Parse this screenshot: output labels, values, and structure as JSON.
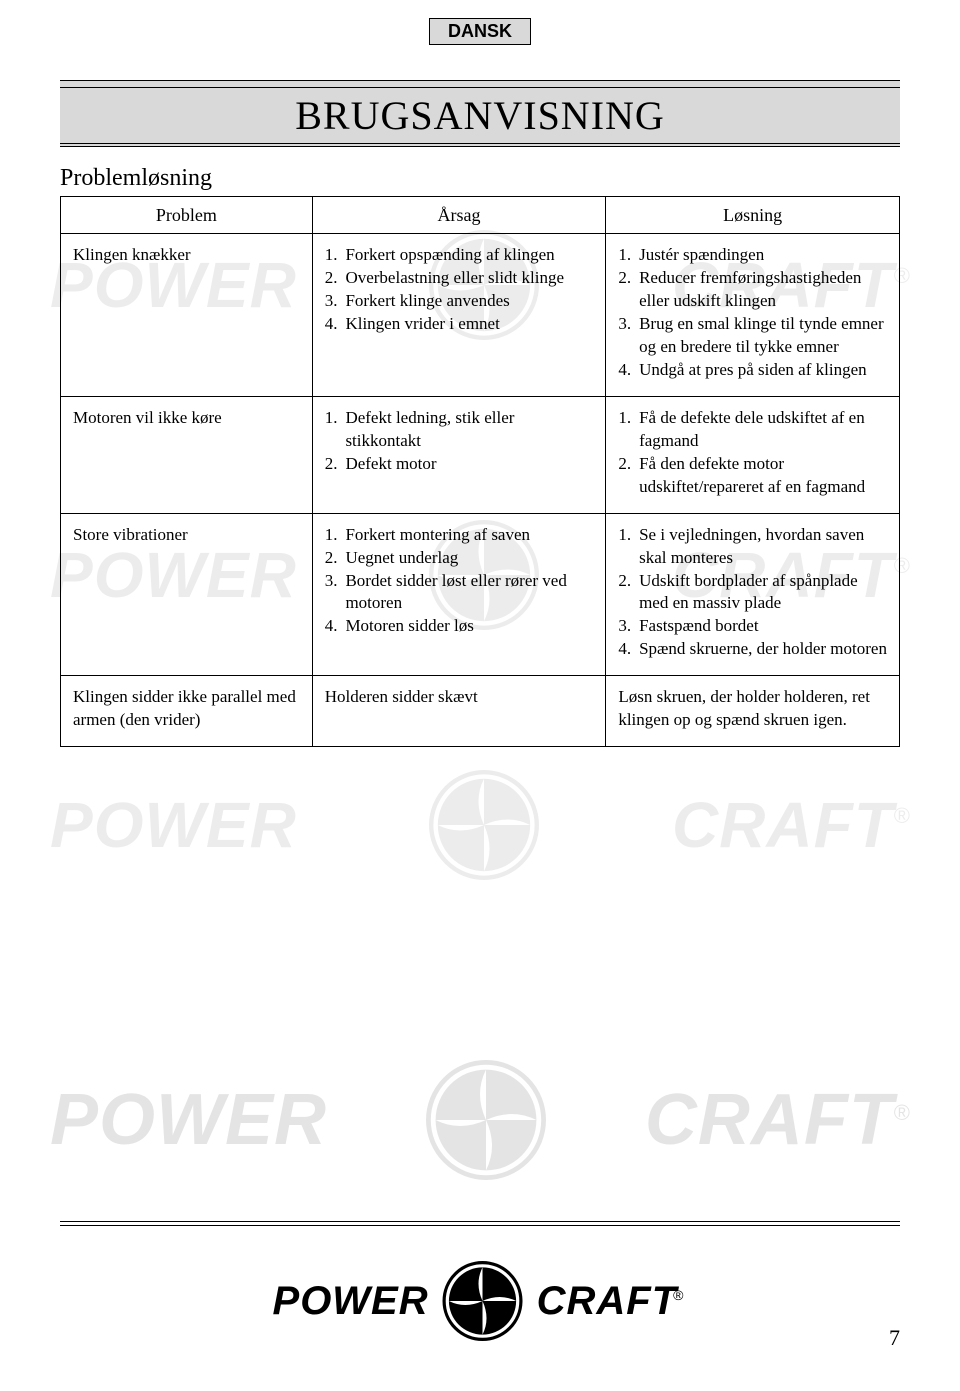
{
  "lang_tab": "DANSK",
  "title": "BRUGSANVISNING",
  "section_title": "Problemløsning",
  "headers": {
    "c1": "Problem",
    "c2": "Årsag",
    "c3": "Løsning"
  },
  "rows": [
    {
      "problem": "Klingen knækker",
      "cause": [
        "Forkert opspænding af klingen",
        "Overbelastning eller slidt klinge",
        "Forkert klinge anvendes",
        "Klingen vrider i emnet"
      ],
      "solution": [
        "Justér spændingen",
        "Reducer fremføringshastigheden eller udskift klingen",
        "Brug en smal klinge til tynde emner og en bredere til tykke emner",
        "Undgå at pres på siden af klingen"
      ]
    },
    {
      "problem": "Motoren vil ikke køre",
      "cause": [
        "Defekt ledning, stik eller stikkontakt",
        "Defekt motor"
      ],
      "solution": [
        "Få de defekte dele udskiftet af en fagmand",
        "Få den defekte motor udskiftet/repareret af en fagmand"
      ]
    },
    {
      "problem": "Store vibrationer",
      "cause": [
        "Forkert montering af saven",
        "Uegnet underlag",
        "Bordet sidder løst eller rører ved motoren",
        "Motoren sidder løs"
      ],
      "solution": [
        "Se i vejledningen, hvordan saven skal monteres",
        "Udskift bordplader af spånplade med en massiv plade",
        "Fastspænd bordet",
        "Spænd skruerne, der holder motoren"
      ]
    },
    {
      "problem": "Klingen sidder ikke parallel med armen (den vrider)",
      "cause_plain": "Holderen sidder skævt",
      "solution_plain": "Løsn skruen, der holder holderen, ret klingen op og spænd skruen igen."
    }
  ],
  "logo": {
    "word1": "POWER",
    "word2": "CRAFT",
    "reg": "®"
  },
  "page_number": "7",
  "colors": {
    "tab_bg": "#d9d9d9",
    "title_bg": "#d9d9d9",
    "border": "#000000",
    "text": "#000000",
    "bg": "#ffffff"
  }
}
